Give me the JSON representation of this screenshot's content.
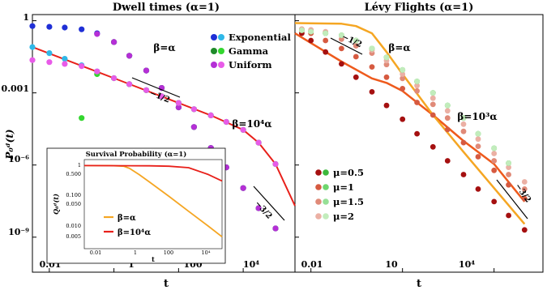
{
  "colors": {
    "exp_dark": "#1f2fd6",
    "exp_light": "#2fb8e8",
    "gamma_dark": "#1f8a2a",
    "gamma_light": "#33d62f",
    "unif_dark": "#b52fd6",
    "unif_light": "#e85be8",
    "orange": "#f5a623",
    "red": "#e8201a",
    "red_orange": "#ee5a1c",
    "mu05_dark": "#a51010",
    "mu05_light": "#3cb83c",
    "mu1_dark": "#d65a40",
    "mu1_light": "#6ed66e",
    "mu15_dark": "#e08a78",
    "mu15_light": "#96e096",
    "mu2_dark": "#ebb0a4",
    "mu2_light": "#c2ecbc"
  },
  "left_panel": {
    "title": "Dwell times (α=1)",
    "ylabel": "P₀ᵈ(t)",
    "xlabel": "t",
    "yticks": [
      "1",
      "0.001",
      "10⁻⁶",
      "10⁻⁹"
    ],
    "xticks": [
      "0.01",
      "1",
      "100",
      "10⁴"
    ],
    "legend": [
      "Exponential",
      "Gamma",
      "Uniform"
    ],
    "annotations": {
      "beta_alpha": "β=α",
      "beta_big": "β=10⁴α",
      "slope1": "−1/2",
      "slope2": "−3/2"
    },
    "inset": {
      "title": "Survival Probability (α=1)",
      "ylabel": "Q₀ᵈ(t)",
      "xlabel": "t",
      "yticks": [
        "1",
        "0.500",
        "0.100",
        "0.050",
        "0.010",
        "0.005"
      ],
      "xticks": [
        "0.01",
        "1",
        "100",
        "10⁴"
      ],
      "legend": [
        "β=α",
        "β=10⁴α"
      ]
    }
  },
  "right_panel": {
    "title": "Lévy Flights (α=1)",
    "xlabel": "t",
    "xticks": [
      "0.01",
      "10",
      "10⁴"
    ],
    "legend": [
      "μ=0.5",
      "μ=1",
      "μ=1.5",
      "μ=2"
    ],
    "annotations": {
      "beta_alpha": "β=α",
      "beta_big": "β=10³α",
      "slope1": "−1/2",
      "slope2": "−3/2"
    }
  },
  "chart_data": [
    {
      "type": "scatter",
      "title": "Dwell times (α=1)",
      "xscale": "log",
      "yscale": "log",
      "xlim": [
        0.003,
        400000
      ],
      "ylim": [
        3.5e-11,
        1.8
      ],
      "series": [
        {
          "name": "Exponential",
          "case": "β=α",
          "x": [
            0.003,
            0.01,
            0.03,
            0.1,
            0.3,
            1,
            3,
            10,
            30,
            100,
            300,
            1000,
            3000,
            10000,
            30000,
            100000
          ],
          "y": [
            0.6,
            0.56,
            0.52,
            0.44,
            0.3,
            0.13,
            0.035,
            0.0085,
            0.0016,
            0.00025,
            3.8e-05,
            5.1e-06,
            8e-07,
            1.1e-07,
            1.6e-08,
            2.3e-09
          ]
        },
        {
          "name": "Gamma",
          "case": "β=α",
          "x": [
            1,
            3,
            10,
            30,
            100,
            300,
            1000,
            3000,
            10000,
            30000,
            100000
          ],
          "y": [
            0.13,
            0.035,
            0.0085,
            0.0016,
            0.00025,
            3.8e-05,
            5.1e-06,
            8e-07,
            1.1e-07,
            1.6e-08,
            2.3e-09
          ]
        },
        {
          "name": "Uniform",
          "case": "β=α",
          "x": [
            0.3,
            1,
            3,
            10,
            30,
            100,
            300,
            1000,
            3000,
            10000,
            30000,
            100000
          ],
          "y": [
            0.28,
            0.13,
            0.035,
            0.0085,
            0.0016,
            0.00025,
            3.8e-05,
            5.1e-06,
            8e-07,
            1.1e-07,
            1.6e-08,
            2.3e-09
          ]
        },
        {
          "name": "Exponential",
          "case": "β=10⁴α",
          "x": [
            0.003,
            0.01,
            0.03,
            0.1,
            0.3,
            1,
            3,
            10,
            30,
            100,
            300,
            1000,
            3000,
            10000,
            30000,
            100000
          ],
          "y": [
            0.08,
            0.045,
            0.026,
            0.014,
            0.0078,
            0.0041,
            0.0023,
            0.0013,
            0.00072,
            0.00038,
            0.00021,
            0.000116,
            6.2e-05,
            2.9e-05,
            8.5e-06,
            1.1e-06
          ]
        },
        {
          "name": "Gamma",
          "case": "β=10⁴α",
          "x": [
            0.1,
            0.3,
            1,
            3,
            10,
            30,
            100,
            300,
            1000,
            3000,
            10000,
            30000,
            100000
          ],
          "y": [
            9e-05,
            0.006,
            0.0041,
            0.0023,
            0.0013,
            0.00072,
            0.00038,
            0.00021,
            0.000116,
            6.2e-05,
            2.9e-05,
            8.5e-06,
            1.1e-06
          ]
        },
        {
          "name": "Uniform",
          "case": "β=10⁴α",
          "x": [
            0.003,
            0.01,
            0.03,
            0.1,
            0.3,
            1,
            3,
            10,
            30,
            100,
            300,
            1000,
            3000,
            10000,
            30000,
            100000
          ],
          "y": [
            0.023,
            0.019,
            0.016,
            0.013,
            0.0078,
            0.0041,
            0.0023,
            0.0013,
            0.00072,
            0.00038,
            0.00021,
            0.000116,
            6.2e-05,
            2.9e-05,
            8.5e-06,
            1.1e-06
          ]
        }
      ]
    },
    {
      "type": "line",
      "title": "Survival Probability (α=1)",
      "xscale": "log",
      "yscale": "log",
      "xlim": [
        0.005,
        50000
      ],
      "ylim": [
        0.0015,
        1.6
      ],
      "series": [
        {
          "name": "β=α",
          "x": [
            0.005,
            0.1,
            0.5,
            1,
            3,
            10,
            100,
            1000,
            10000,
            50000
          ],
          "y": [
            1,
            1,
            0.95,
            0.8,
            0.5,
            0.28,
            0.09,
            0.028,
            0.0088,
            0.0038
          ]
        },
        {
          "name": "β=10⁴α",
          "x": [
            0.005,
            1,
            10,
            100,
            1000,
            10000,
            50000
          ],
          "y": [
            1,
            0.99,
            0.98,
            0.95,
            0.85,
            0.5,
            0.3
          ]
        }
      ]
    },
    {
      "type": "scatter",
      "title": "Lévy Flights (α=1)",
      "xscale": "log",
      "yscale": "log",
      "xlim": [
        0.003,
        400000
      ],
      "ylim": [
        3.5e-11,
        1.8
      ],
      "series": [
        {
          "name": "β=α",
          "kind": "curve",
          "x": [
            0.003,
            0.1,
            0.3,
            1,
            3,
            10,
            100,
            1000,
            10000,
            100000
          ],
          "y": [
            0.8,
            0.75,
            0.6,
            0.3,
            0.05,
            0.006,
            0.00012,
            3.5e-06,
            1.1e-07,
            3.5e-09
          ]
        },
        {
          "name": "β=10³α",
          "kind": "curve",
          "x": [
            0.003,
            0.1,
            1,
            3,
            10,
            30,
            100,
            1000,
            10000,
            100000
          ],
          "y": [
            0.3,
            0.02,
            0.004,
            0.0026,
            0.0012,
            0.0004,
            0.00012,
            1e-05,
            1.1e-06,
            3e-08
          ]
        },
        {
          "name": "μ=0.5",
          "case": "β=α",
          "x": [
            0.005,
            0.01,
            0.03,
            0.1,
            0.3,
            1,
            3,
            10,
            30,
            100,
            300,
            1000,
            3000,
            10000,
            30000,
            100000
          ],
          "y": [
            0.3,
            0.15,
            0.05,
            0.016,
            0.0045,
            0.0011,
            0.0003,
            8e-05,
            2e-05,
            5.7e-06,
            1.5e-06,
            4e-07,
            1e-07,
            3e-08,
            8e-09,
            2e-09
          ]
        },
        {
          "name": "μ=1",
          "case": "β=α",
          "x": [
            0.005,
            0.01,
            0.03,
            0.1,
            0.3,
            1,
            3,
            10,
            30,
            100,
            300,
            1000,
            3000,
            10000,
            30000,
            100000
          ],
          "y": [
            0.4,
            0.3,
            0.15,
            0.07,
            0.032,
            0.012,
            0.0045,
            0.0015,
            0.0004,
            0.00012,
            3e-05,
            8.5e-06,
            2.2e-06,
            6e-07,
            1.5e-07,
            4e-08
          ]
        },
        {
          "name": "μ=1.5",
          "case": "β=α",
          "x": [
            0.005,
            0.01,
            0.03,
            0.1,
            0.3,
            1,
            3,
            10,
            30,
            100,
            300,
            1000,
            3000,
            10000,
            30000,
            100000
          ],
          "y": [
            0.45,
            0.4,
            0.3,
            0.17,
            0.09,
            0.045,
            0.015,
            0.004,
            0.0012,
            0.00033,
            9e-05,
            2.5e-05,
            6e-06,
            1.5e-06,
            4e-07,
            1e-07
          ]
        },
        {
          "name": "μ=2",
          "case": "β=α",
          "x": [
            0.005,
            0.01,
            0.03,
            0.1,
            0.3,
            1,
            3,
            10,
            30,
            100,
            300,
            1000,
            3000,
            10000,
            30000,
            100000
          ],
          "y": [
            0.45,
            0.42,
            0.35,
            0.25,
            0.15,
            0.06,
            0.022,
            0.006,
            0.002,
            0.0006,
            0.00018,
            5e-05,
            1.2e-05,
            3e-06,
            8e-07,
            2e-07
          ]
        },
        {
          "name": "μ=0.5",
          "case": "β=10³α",
          "x": [
            0.005,
            0.01,
            0.03,
            0.1,
            0.3,
            1,
            3,
            10,
            30,
            100,
            300,
            1000,
            3000,
            10000,
            30000
          ],
          "y": [
            0.4,
            0.35,
            0.3,
            0.25,
            0.15,
            0.07,
            0.03,
            0.009,
            0.003,
            0.001,
            0.0003,
            9e-05,
            2e-05,
            5e-06,
            1.2e-06
          ]
        },
        {
          "name": "μ=1",
          "case": "β=10³α",
          "x": [
            0.005,
            0.01,
            0.03,
            0.1,
            0.3,
            1,
            3,
            10,
            30,
            100,
            300,
            1000,
            3000,
            10000,
            30000
          ],
          "y": [
            0.4,
            0.35,
            0.3,
            0.25,
            0.15,
            0.07,
            0.03,
            0.009,
            0.003,
            0.001,
            0.0003,
            9e-05,
            2e-05,
            5e-06,
            1.2e-06
          ]
        },
        {
          "name": "μ=1.5",
          "case": "β=10³α",
          "x": [
            0.005,
            0.01,
            0.03,
            0.1,
            0.3,
            1,
            3,
            10,
            30,
            100,
            300,
            1000,
            3000,
            10000,
            30000
          ],
          "y": [
            0.4,
            0.35,
            0.3,
            0.25,
            0.15,
            0.07,
            0.03,
            0.009,
            0.003,
            0.001,
            0.0003,
            9e-05,
            2e-05,
            5e-06,
            1.2e-06
          ]
        },
        {
          "name": "μ=2",
          "case": "β=10³α",
          "x": [
            0.005,
            0.01,
            0.03,
            0.1,
            0.3,
            1,
            3,
            10,
            30,
            100,
            300,
            1000,
            3000,
            10000,
            30000
          ],
          "y": [
            0.4,
            0.35,
            0.3,
            0.25,
            0.15,
            0.07,
            0.03,
            0.009,
            0.003,
            0.001,
            0.0003,
            9e-05,
            2e-05,
            5e-06,
            1.2e-06
          ]
        }
      ]
    }
  ]
}
